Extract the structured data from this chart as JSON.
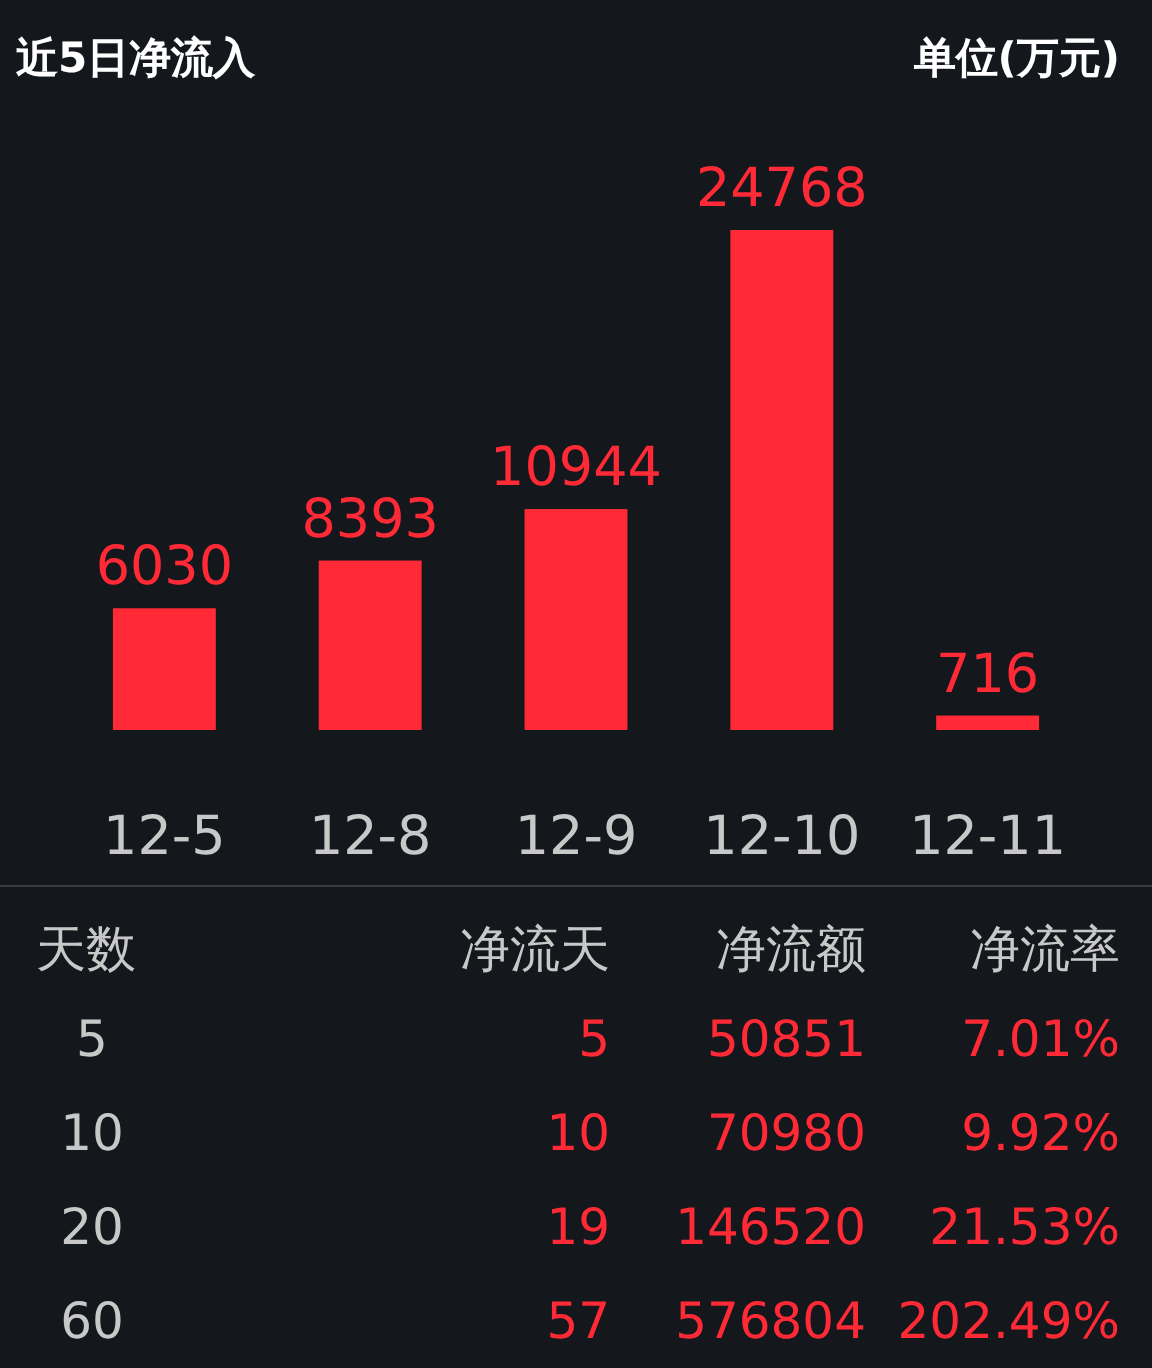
{
  "chart_data": [
    {
      "type": "bar",
      "title": "近5日净流入",
      "subtitle": "单位(万元)",
      "categories": [
        "12-5",
        "12-8",
        "12-9",
        "12-10",
        "12-11"
      ],
      "values": [
        6030,
        8393,
        10944,
        24768,
        716
      ],
      "color": "#ff2a36",
      "data_labels": true
    },
    {
      "type": "other",
      "ylabel": "天数",
      "categories": [
        "净流天",
        "净流额",
        "净流率"
      ],
      "y_categories": [
        "5",
        "10",
        "20",
        "60"
      ],
      "cells": [
        [
          "5",
          "50851",
          "7.01%"
        ],
        [
          "10",
          "70980",
          "9.92%"
        ],
        [
          "19",
          "146520",
          "21.53%"
        ],
        [
          "57",
          "576804",
          "202.49%"
        ]
      ]
    }
  ]
}
